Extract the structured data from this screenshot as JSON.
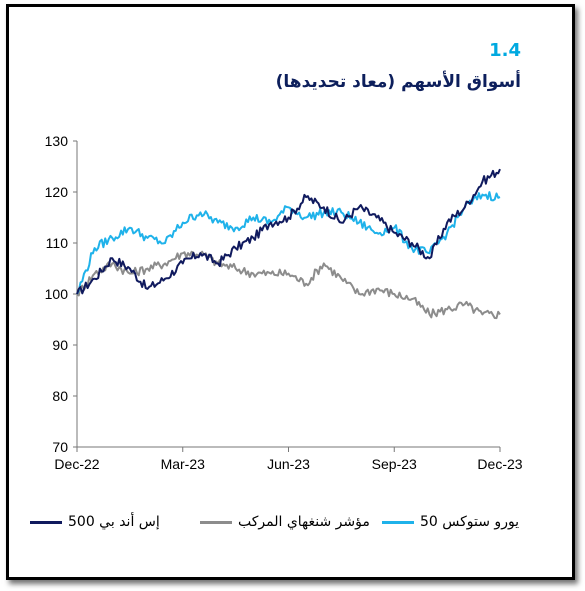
{
  "figure": {
    "number": "1.4",
    "title": "أسواق الأسهم (معاد تحديدها)"
  },
  "colors": {
    "sp500": "#101a5e",
    "shanghai": "#8c8c8c",
    "eurostoxx": "#1fb2ea",
    "title": "#0d1f5c",
    "number": "#00a9e0"
  },
  "chart_data": {
    "type": "line",
    "title": "أسواق الأسهم (معاد تحديدها)",
    "ylim": [
      70,
      130
    ],
    "yticks": [
      "70",
      "80",
      "90",
      "100",
      "110",
      "120",
      "130"
    ],
    "xticks": [
      "Dec-22",
      "Mar-23",
      "Jun-23",
      "Sep-23",
      "Dec-23"
    ],
    "xlim_months": [
      0,
      12
    ],
    "grid": false,
    "legend_position": "bottom",
    "x": [
      0,
      0.5,
      1,
      1.5,
      2,
      2.5,
      3,
      3.5,
      4,
      4.5,
      5,
      5.5,
      6,
      6.5,
      7,
      7.5,
      8,
      8.5,
      9,
      9.5,
      10,
      10.5,
      11,
      11.5,
      12
    ],
    "series": [
      {
        "name": "إس أند بي 500",
        "key": "sp500",
        "values": [
          100,
          103,
          107,
          105,
          101,
          103,
          106,
          108,
          106,
          109,
          111,
          114,
          115,
          119,
          117,
          114,
          117,
          115,
          112,
          110,
          107,
          114,
          117,
          122,
          124.5
        ]
      },
      {
        "name": "مؤشر شنغهاي المركب",
        "key": "shanghai",
        "values": [
          100,
          104,
          106,
          104,
          105,
          106,
          108,
          108,
          106,
          105,
          104,
          104,
          104,
          102,
          106,
          103,
          100,
          101,
          100,
          99,
          96,
          97,
          98,
          96,
          96
        ]
      },
      {
        "name": "يورو ستوكس 50",
        "key": "eurostoxx",
        "values": [
          100,
          109,
          111,
          113,
          111,
          110,
          114,
          116,
          114,
          113,
          115,
          114,
          117,
          115,
          116,
          116,
          114,
          112,
          113,
          109,
          108,
          112,
          117,
          119.5,
          119
        ]
      }
    ]
  }
}
